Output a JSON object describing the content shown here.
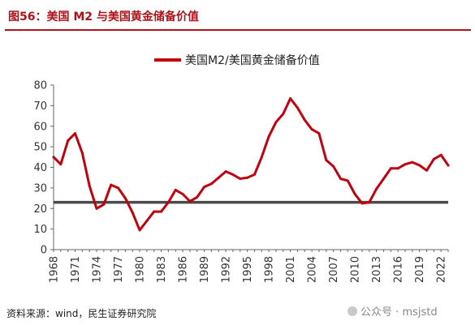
{
  "figure": {
    "title": "图56：美国 M2 与美国黄金储备价值",
    "source": "资料来源：wind，民生证券研究院",
    "watermark": "公众号 · msjstd"
  },
  "chart_data": {
    "type": "line",
    "title": "",
    "xlabel": "",
    "ylabel": "",
    "ylim": [
      0,
      80
    ],
    "yticks": [
      0,
      10,
      20,
      30,
      40,
      50,
      60,
      70,
      80
    ],
    "xlim": [
      1968,
      2023
    ],
    "xticks": [
      "1968",
      "1971",
      "1974",
      "1977",
      "1980",
      "1983",
      "1986",
      "1989",
      "1992",
      "1995",
      "1998",
      "2001",
      "2004",
      "2007",
      "2010",
      "2013",
      "2016",
      "2019",
      "2022"
    ],
    "legend": {
      "position": "top-center"
    },
    "grid": false,
    "reference_line": {
      "value": 23,
      "color": "#4a4a4a"
    },
    "series": [
      {
        "name": "美国M2/美国黄金储备价值",
        "color": "#c0000f",
        "x": [
          1968,
          1969,
          1970,
          1971,
          1972,
          1973,
          1974,
          1975,
          1976,
          1977,
          1978,
          1979,
          1980,
          1981,
          1982,
          1983,
          1984,
          1985,
          1986,
          1987,
          1988,
          1989,
          1990,
          1991,
          1992,
          1993,
          1994,
          1995,
          1996,
          1997,
          1998,
          1999,
          2000,
          2001,
          2002,
          2003,
          2004,
          2005,
          2006,
          2007,
          2008,
          2009,
          2010,
          2011,
          2012,
          2013,
          2014,
          2015,
          2016,
          2017,
          2018,
          2019,
          2020,
          2021,
          2022,
          2023
        ],
        "values": [
          45,
          41.5,
          53,
          56.5,
          47,
          31,
          20,
          22,
          31.5,
          30,
          25,
          18,
          9.5,
          14,
          18.5,
          18.5,
          23,
          29,
          27,
          23.5,
          25.5,
          30.5,
          32,
          35,
          38,
          36.5,
          34.5,
          35,
          36.5,
          45,
          55,
          62,
          66,
          73.5,
          69,
          63,
          58.5,
          56.5,
          43.5,
          40.5,
          34.5,
          33.5,
          27,
          22.5,
          23,
          29.5,
          34.5,
          39.5,
          39.5,
          41.5,
          42.5,
          41,
          38.5,
          44,
          46,
          41
        ]
      }
    ]
  }
}
